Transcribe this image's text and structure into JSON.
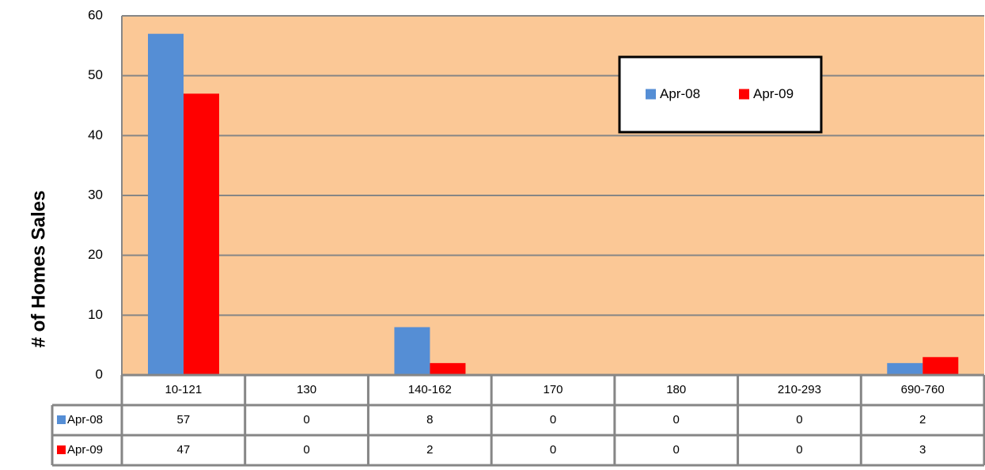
{
  "chart_data": {
    "type": "bar",
    "y_label": "# of Homes Sales",
    "categories": [
      "10-121",
      "130",
      "140-162",
      "170",
      "180",
      "210-293",
      "690-760"
    ],
    "series": [
      {
        "name": "Apr-08",
        "color": "#558ed5",
        "values": [
          57,
          0,
          8,
          0,
          0,
          0,
          2
        ]
      },
      {
        "name": "Apr-09",
        "color": "#ff0000",
        "values": [
          47,
          0,
          2,
          0,
          0,
          0,
          3
        ]
      }
    ],
    "ylim": [
      0,
      60
    ],
    "yticks": [
      0,
      10,
      20,
      30,
      40,
      50,
      60
    ],
    "grid": true,
    "plot_background": "#fbc896",
    "legend": "upper right",
    "data_table": true
  }
}
